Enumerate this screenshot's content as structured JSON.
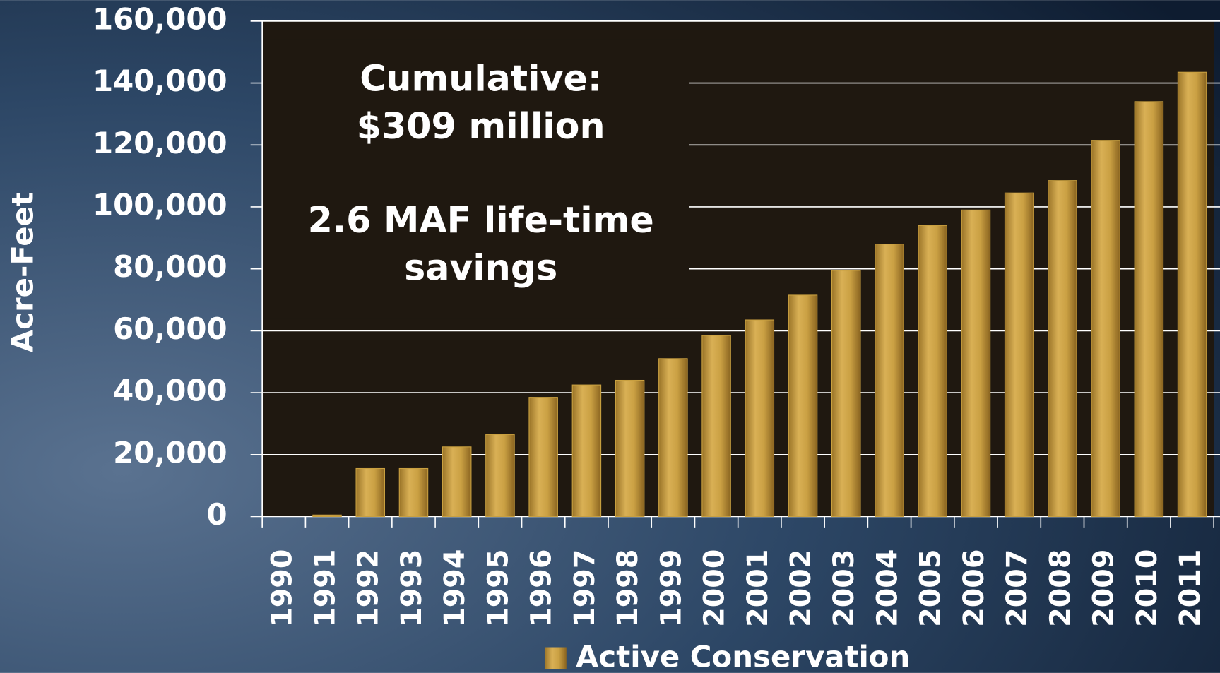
{
  "chart_data": {
    "type": "bar",
    "y_label": "Acre-Feet",
    "annotations": [
      "Cumulative:",
      "$309 million",
      "2.6 MAF life-time",
      "savings"
    ],
    "categories": [
      "1990",
      "1991",
      "1992",
      "1993",
      "1994",
      "1995",
      "1996",
      "1997",
      "1998",
      "1999",
      "2000",
      "2001",
      "2002",
      "2003",
      "2004",
      "2005",
      "2006",
      "2007",
      "2008",
      "2009",
      "2010",
      "2011"
    ],
    "series": [
      {
        "name": "Active Conservation",
        "color": "#c9a040",
        "values": [
          0,
          500,
          15500,
          15500,
          22500,
          26500,
          38500,
          42500,
          44000,
          51000,
          58500,
          63500,
          71500,
          79500,
          88000,
          94000,
          99000,
          104500,
          108500,
          121500,
          134000,
          143500
        ]
      }
    ],
    "ylim": [
      0,
      160000
    ],
    "yticks": [
      0,
      {
        "value": 20000,
        "label": "20,000"
      },
      {
        "value": 40000,
        "label": "40,000"
      },
      {
        "value": 60000,
        "label": "60,000"
      },
      {
        "value": 80000,
        "label": "80,000"
      },
      {
        "value": 100000,
        "label": "100,000"
      },
      {
        "value": 120000,
        "label": "120,000"
      },
      {
        "value": 140000,
        "label": "140,000"
      },
      {
        "value": 160000,
        "label": "160,000"
      }
    ],
    "grid": true,
    "legend": "bottom"
  }
}
